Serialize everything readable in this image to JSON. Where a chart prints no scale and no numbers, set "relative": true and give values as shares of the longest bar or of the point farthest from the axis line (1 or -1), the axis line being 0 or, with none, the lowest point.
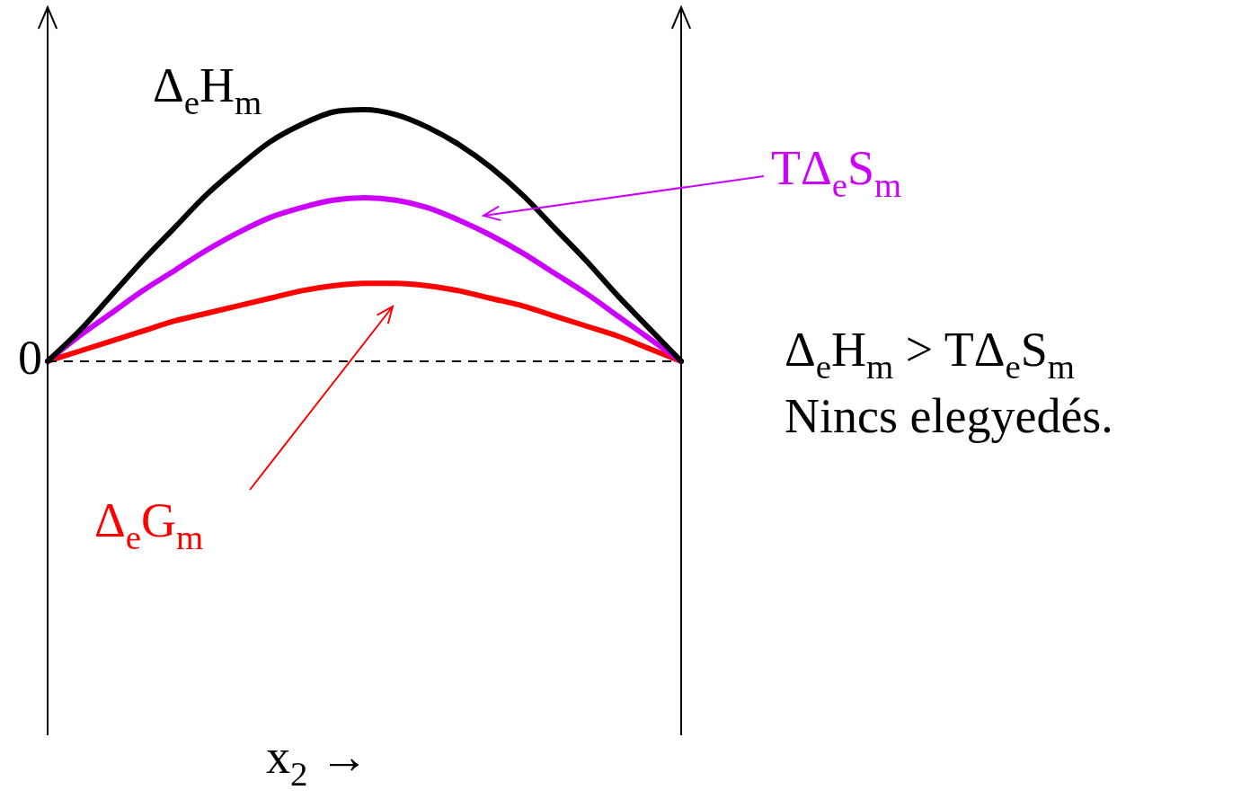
{
  "chart_data": {
    "type": "line",
    "relative": true,
    "categories": [
      null,
      null,
      null,
      null,
      null,
      null,
      null,
      null,
      null,
      null,
      null,
      null,
      null,
      null,
      null,
      null,
      null,
      null,
      null,
      null,
      null
    ],
    "series": [
      {
        "name": "Δ$_{e}$H$_{m}$",
        "color": "#000000",
        "values": [
          0,
          0.12,
          0.26,
          0.4,
          0.53,
          0.66,
          0.77,
          0.87,
          0.94,
          0.99,
          1.0,
          0.98,
          0.93,
          0.86,
          0.77,
          0.66,
          0.53,
          0.4,
          0.26,
          0.13,
          0
        ]
      },
      {
        "name": "TΔ$_{e}$S$_{m}$",
        "color": "#cc00ff",
        "values": [
          0,
          0.1,
          0.19,
          0.28,
          0.36,
          0.44,
          0.51,
          0.57,
          0.61,
          0.64,
          0.65,
          0.64,
          0.61,
          0.56,
          0.5,
          0.43,
          0.35,
          0.27,
          0.18,
          0.09,
          0
        ]
      },
      {
        "name": "Δ$_{e}$G$_{m}$",
        "color": "#ff0000",
        "values": [
          0,
          0.04,
          0.08,
          0.12,
          0.16,
          0.19,
          0.22,
          0.25,
          0.28,
          0.3,
          0.31,
          0.31,
          0.3,
          0.28,
          0.25,
          0.22,
          0.18,
          0.14,
          0.1,
          0.05,
          0
        ]
      }
    ],
    "ref_lines": [
      {
        "axis": "y",
        "value": 0,
        "label": "0",
        "line_style": "dashed",
        "color": "#000000"
      }
    ],
    "annotations": [
      "Δ$_{e}$H$_{m}$ > TΔ$_{e}$S$_{m}$",
      "Nincs elegyedés.",
      "x$_{2}$ →"
    ],
    "legend": false,
    "marker": "none",
    "line_style": "solid"
  }
}
